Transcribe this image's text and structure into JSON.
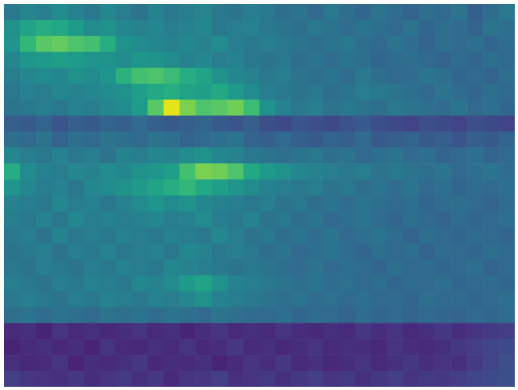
{
  "chart_data": {
    "type": "heatmap",
    "tick_labels": false,
    "color": "viridis",
    "zlim": [
      0,
      100
    ],
    "cells": [
      [
        40,
        45,
        42,
        48,
        44,
        40,
        46,
        42,
        38,
        44,
        40,
        42,
        45,
        40,
        38,
        42,
        40,
        36,
        38,
        34,
        40,
        36,
        33,
        38,
        35,
        32,
        36,
        34,
        38,
        30,
        35,
        40
      ],
      [
        50,
        58,
        62,
        60,
        55,
        48,
        50,
        46,
        44,
        46,
        42,
        44,
        46,
        40,
        42,
        44,
        40,
        38,
        36,
        40,
        38,
        35,
        38,
        36,
        34,
        38,
        33,
        36,
        35,
        32,
        38,
        36
      ],
      [
        52,
        66,
        74,
        76,
        72,
        70,
        62,
        50,
        48,
        46,
        44,
        46,
        44,
        48,
        42,
        40,
        42,
        40,
        38,
        36,
        38,
        40,
        36,
        34,
        38,
        35,
        32,
        36,
        34,
        36,
        33,
        35
      ],
      [
        46,
        52,
        54,
        56,
        55,
        52,
        50,
        48,
        52,
        50,
        48,
        44,
        46,
        42,
        44,
        40,
        38,
        40,
        36,
        38,
        35,
        38,
        36,
        33,
        35,
        36,
        34,
        32,
        35,
        33,
        36,
        34
      ],
      [
        42,
        46,
        48,
        46,
        50,
        48,
        52,
        64,
        70,
        72,
        68,
        62,
        58,
        50,
        46,
        44,
        40,
        42,
        38,
        36,
        38,
        35,
        40,
        36,
        34,
        35,
        38,
        36,
        33,
        34,
        32,
        36
      ],
      [
        40,
        44,
        42,
        46,
        44,
        46,
        48,
        50,
        56,
        60,
        62,
        58,
        56,
        60,
        54,
        48,
        42,
        40,
        38,
        40,
        36,
        38,
        42,
        40,
        38,
        36,
        34,
        38,
        35,
        33,
        36,
        34
      ],
      [
        38,
        40,
        42,
        40,
        44,
        42,
        46,
        48,
        55,
        74,
        96,
        80,
        72,
        74,
        78,
        68,
        50,
        44,
        40,
        42,
        38,
        40,
        38,
        36,
        40,
        38,
        36,
        35,
        38,
        34,
        36,
        33
      ],
      [
        30,
        28,
        32,
        26,
        30,
        28,
        32,
        30,
        34,
        30,
        28,
        30,
        32,
        28,
        26,
        30,
        24,
        22,
        26,
        24,
        22,
        25,
        28,
        24,
        22,
        20,
        24,
        22,
        20,
        24,
        22,
        20
      ],
      [
        36,
        34,
        38,
        32,
        36,
        34,
        38,
        36,
        34,
        38,
        36,
        32,
        34,
        36,
        38,
        32,
        30,
        34,
        30,
        28,
        32,
        30,
        34,
        28,
        30,
        32,
        28,
        30,
        26,
        30,
        28,
        32
      ],
      [
        46,
        42,
        40,
        44,
        40,
        42,
        38,
        44,
        42,
        46,
        44,
        48,
        50,
        46,
        44,
        40,
        38,
        36,
        38,
        40,
        36,
        38,
        34,
        36,
        38,
        34,
        36,
        32,
        34,
        36,
        32,
        34
      ],
      [
        62,
        48,
        44,
        42,
        46,
        44,
        48,
        46,
        50,
        52,
        56,
        70,
        80,
        78,
        72,
        60,
        54,
        50,
        46,
        44,
        42,
        40,
        42,
        38,
        40,
        38,
        36,
        38,
        34,
        36,
        38,
        35
      ],
      [
        52,
        46,
        42,
        44,
        40,
        46,
        48,
        50,
        54,
        58,
        62,
        66,
        60,
        56,
        52,
        48,
        44,
        42,
        40,
        42,
        38,
        40,
        36,
        38,
        35,
        38,
        34,
        36,
        33,
        35,
        34,
        36
      ],
      [
        44,
        42,
        40,
        46,
        42,
        44,
        40,
        44,
        48,
        52,
        48,
        50,
        46,
        44,
        42,
        40,
        42,
        38,
        40,
        36,
        38,
        35,
        38,
        36,
        34,
        36,
        33,
        35,
        36,
        34,
        32,
        35
      ],
      [
        42,
        40,
        44,
        40,
        46,
        42,
        44,
        42,
        44,
        46,
        42,
        44,
        48,
        42,
        40,
        44,
        38,
        40,
        36,
        38,
        34,
        36,
        38,
        35,
        33,
        36,
        34,
        32,
        35,
        33,
        34,
        36
      ],
      [
        40,
        42,
        38,
        44,
        40,
        42,
        40,
        44,
        42,
        40,
        44,
        42,
        40,
        46,
        42,
        38,
        40,
        36,
        38,
        35,
        38,
        34,
        36,
        38,
        35,
        32,
        36,
        34,
        33,
        35,
        34,
        32
      ],
      [
        38,
        40,
        42,
        38,
        42,
        40,
        44,
        40,
        42,
        44,
        40,
        46,
        44,
        40,
        42,
        40,
        36,
        38,
        34,
        36,
        38,
        35,
        33,
        36,
        34,
        36,
        32,
        35,
        34,
        33,
        36,
        34
      ],
      [
        40,
        38,
        42,
        40,
        38,
        42,
        40,
        44,
        42,
        40,
        46,
        44,
        42,
        40,
        38,
        40,
        38,
        36,
        35,
        38,
        34,
        36,
        35,
        33,
        36,
        34,
        35,
        33,
        34,
        36,
        32,
        34
      ],
      [
        42,
        40,
        38,
        42,
        40,
        44,
        42,
        40,
        46,
        44,
        48,
        54,
        58,
        50,
        44,
        42,
        40,
        38,
        36,
        38,
        35,
        37,
        34,
        36,
        33,
        35,
        34,
        36,
        33,
        34,
        35,
        33
      ],
      [
        40,
        42,
        40,
        38,
        42,
        40,
        44,
        42,
        40,
        44,
        42,
        46,
        50,
        44,
        42,
        40,
        38,
        36,
        38,
        35,
        37,
        34,
        36,
        34,
        35,
        33,
        36,
        34,
        35,
        33,
        34,
        36
      ],
      [
        36,
        38,
        35,
        38,
        36,
        34,
        38,
        36,
        38,
        35,
        38,
        36,
        34,
        38,
        36,
        35,
        34,
        36,
        33,
        35,
        34,
        32,
        35,
        33,
        34,
        32,
        34,
        33,
        32,
        34,
        33,
        35
      ],
      [
        12,
        14,
        10,
        15,
        12,
        14,
        11,
        13,
        15,
        12,
        14,
        10,
        13,
        15,
        12,
        14,
        12,
        15,
        13,
        11,
        14,
        12,
        16,
        13,
        15,
        12,
        14,
        16,
        13,
        15,
        17,
        18
      ],
      [
        10,
        12,
        14,
        11,
        13,
        10,
        15,
        12,
        11,
        14,
        12,
        15,
        11,
        13,
        16,
        12,
        14,
        11,
        13,
        15,
        12,
        14,
        13,
        11,
        15,
        13,
        12,
        14,
        16,
        18,
        20,
        22
      ],
      [
        14,
        11,
        12,
        15,
        10,
        13,
        12,
        14,
        16,
        11,
        13,
        12,
        14,
        10,
        12,
        15,
        13,
        16,
        12,
        14,
        11,
        13,
        15,
        12,
        14,
        16,
        13,
        15,
        14,
        17,
        20,
        24
      ],
      [
        18,
        16,
        15,
        14,
        16,
        13,
        15,
        17,
        14,
        16,
        12,
        15,
        16,
        18,
        14,
        15,
        17,
        14,
        16,
        18,
        15,
        17,
        14,
        16,
        18,
        15,
        17,
        16,
        18,
        20,
        22,
        24
      ]
    ]
  }
}
